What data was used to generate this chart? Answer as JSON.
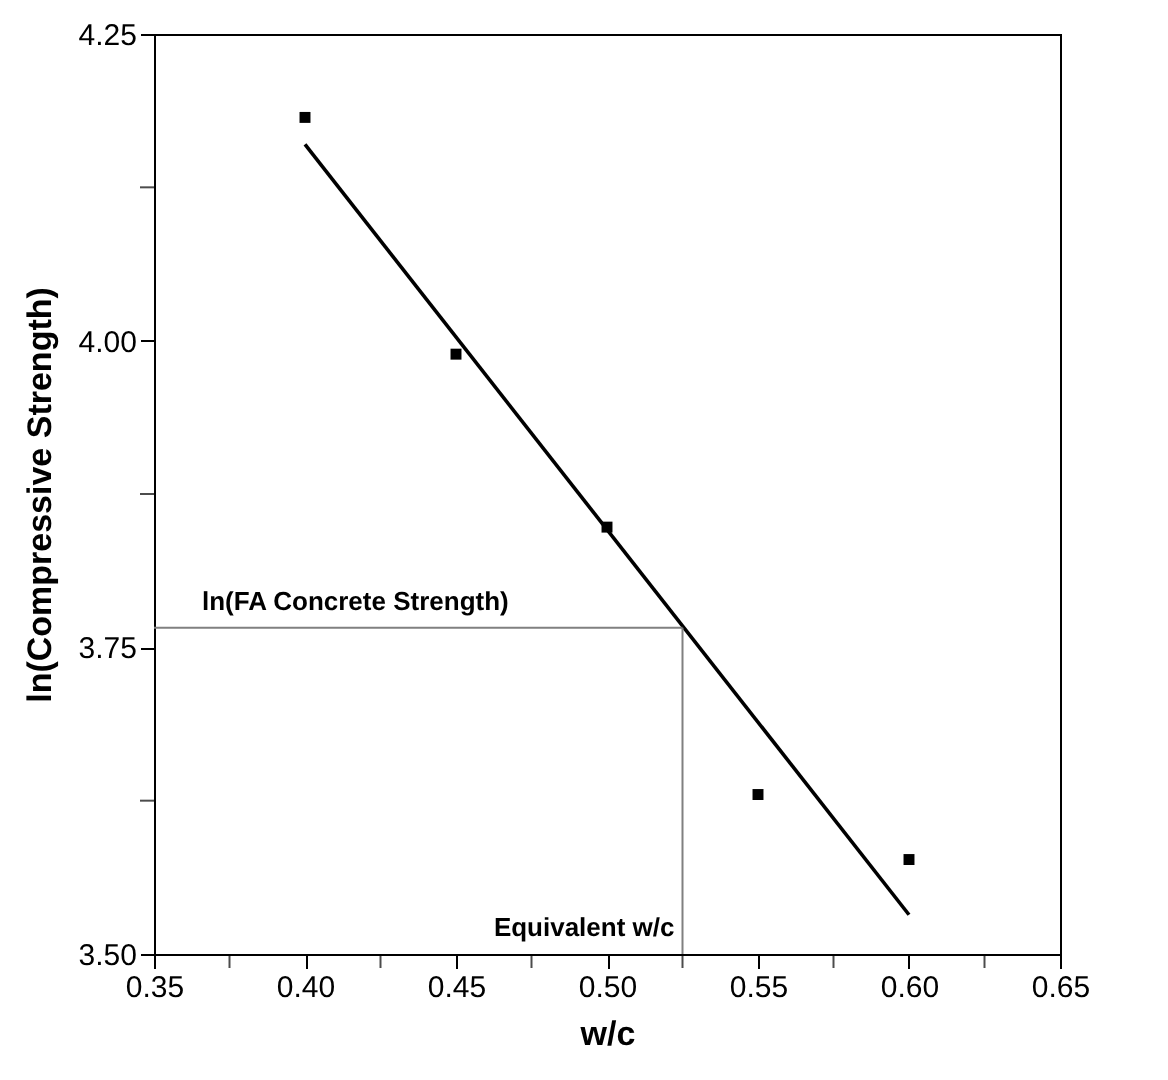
{
  "chart_data": {
    "type": "scatter",
    "xlabel": "w/c",
    "ylabel": "ln(Compressive Strength)",
    "x": [
      0.4,
      0.45,
      0.5,
      0.55,
      0.6
    ],
    "series": [
      {
        "color": "#000000",
        "marker": "square",
        "values": [
          4.182,
          3.989,
          3.848,
          3.63,
          3.577
        ]
      },
      {
        "type": "line",
        "color": "#000000",
        "x": [
          0.4,
          0.6
        ],
        "values": [
          4.16,
          3.532
        ],
        "line_style": "solid"
      }
    ],
    "xlim": [
      0.35,
      0.65
    ],
    "ylim": [
      3.5,
      4.25
    ],
    "xticks": [
      {
        "value": 0.35,
        "label": "0.35"
      },
      {
        "value": 0.375,
        "label": null
      },
      {
        "value": 0.4,
        "label": "0.40"
      },
      {
        "value": 0.425,
        "label": null
      },
      {
        "value": 0.45,
        "label": "0.45"
      },
      {
        "value": 0.475,
        "label": null
      },
      {
        "value": 0.5,
        "label": "0.50"
      },
      {
        "value": 0.525,
        "label": null
      },
      {
        "value": 0.55,
        "label": "0.55"
      },
      {
        "value": 0.575,
        "label": null
      },
      {
        "value": 0.6,
        "label": "0.60"
      },
      {
        "value": 0.625,
        "label": null
      },
      {
        "value": 0.65,
        "label": "0.65"
      }
    ],
    "yticks": [
      {
        "value": 3.5,
        "label": "3.50"
      },
      {
        "value": 3.625,
        "label": null
      },
      {
        "value": 3.75,
        "label": "3.75"
      },
      {
        "value": 3.875,
        "label": null
      },
      {
        "value": 4.0,
        "label": "4.00"
      },
      {
        "value": 4.125,
        "label": null
      },
      {
        "value": 4.25,
        "label": "4.25"
      }
    ],
    "ref_lines": [
      {
        "axis": "y",
        "value": 3.766,
        "label": "ln(FA Concrete Strength)",
        "color": "#808080"
      },
      {
        "axis": "x",
        "value": 0.525,
        "label": "Equivalent w/c",
        "color": "#808080"
      }
    ],
    "grid": false
  }
}
